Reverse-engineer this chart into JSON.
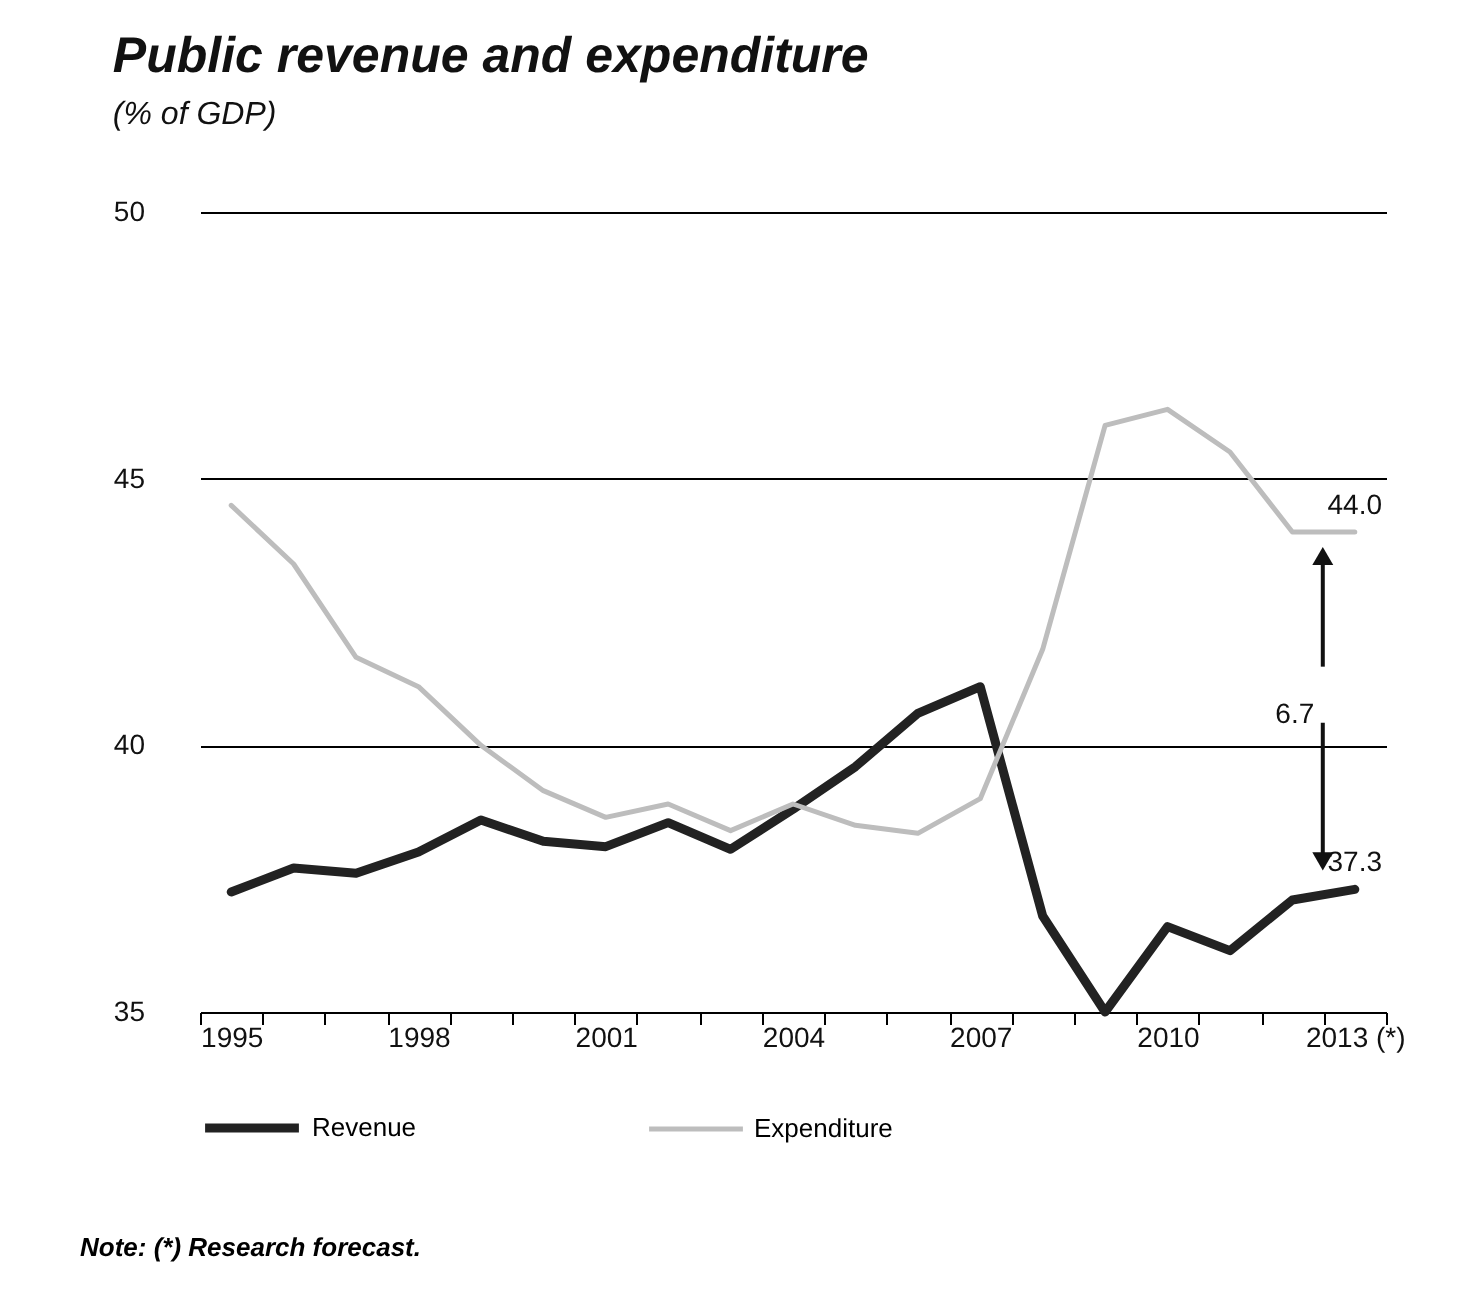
{
  "chart_data": {
    "type": "line",
    "title": "Public revenue and expenditure",
    "subtitle": "(% of GDP)",
    "x": [
      1995,
      1996,
      1997,
      1998,
      1999,
      2000,
      2001,
      2002,
      2003,
      2004,
      2005,
      2006,
      2007,
      2008,
      2009,
      2010,
      2011,
      2012,
      2013
    ],
    "series": [
      {
        "name": "Revenue",
        "color": "#222222",
        "values": [
          37.25,
          37.7,
          37.6,
          38.0,
          38.6,
          38.2,
          38.1,
          38.55,
          38.05,
          38.8,
          39.6,
          40.6,
          41.1,
          36.8,
          35.0,
          36.6,
          36.15,
          37.1,
          37.3
        ]
      },
      {
        "name": "Expenditure",
        "color": "#bdbdbd",
        "values": [
          44.5,
          43.4,
          41.65,
          41.1,
          40.0,
          39.15,
          38.65,
          38.9,
          38.4,
          38.9,
          38.5,
          38.35,
          39.0,
          41.8,
          46.0,
          46.3,
          45.5,
          44.0,
          44.0
        ]
      }
    ],
    "xlim": [
      1994.5,
      2013.5
    ],
    "xticks": [
      {
        "value": 1994.5,
        "label": null
      },
      {
        "value": 1995.5,
        "label": null
      },
      {
        "value": 1996.5,
        "label": null
      },
      {
        "value": 1997.5,
        "label": null
      },
      {
        "value": 1998.5,
        "label": null
      },
      {
        "value": 1999.5,
        "label": null
      },
      {
        "value": 2000.5,
        "label": null
      },
      {
        "value": 2001.5,
        "label": null
      },
      {
        "value": 2002.5,
        "label": null
      },
      {
        "value": 2003.5,
        "label": null
      },
      {
        "value": 2004.5,
        "label": null
      },
      {
        "value": 2005.5,
        "label": null
      },
      {
        "value": 2006.5,
        "label": null
      },
      {
        "value": 2007.5,
        "label": null
      },
      {
        "value": 2008.5,
        "label": null
      },
      {
        "value": 2009.5,
        "label": null
      },
      {
        "value": 2010.5,
        "label": null
      },
      {
        "value": 2011.5,
        "label": null
      },
      {
        "value": 2012.5,
        "label": null
      },
      {
        "value": 2013.5,
        "label": null
      },
      1995,
      1998,
      2001,
      2004,
      2007,
      2010,
      {
        "value": 2013,
        "label": "2013 (*)"
      }
    ],
    "ylim": [
      35,
      50
    ],
    "yticks": [
      35,
      40,
      45,
      50
    ],
    "grid": "y",
    "legend": "bottom",
    "marker": "none",
    "line_style": "solid",
    "annotations": [
      {
        "text": "44.0",
        "x": 2013,
        "y": 44.0
      },
      "6.7",
      {
        "text": "37.3",
        "x": 2013,
        "y": 37.3
      },
      "Note: (*) Research forecast."
    ]
  }
}
